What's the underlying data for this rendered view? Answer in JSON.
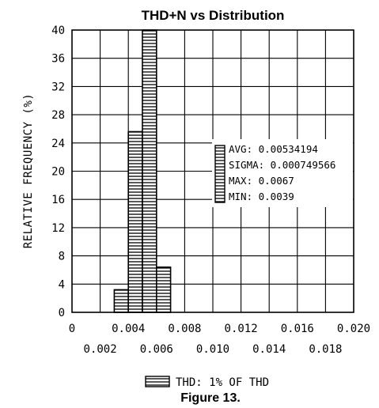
{
  "chart_data": {
    "type": "bar",
    "title": "THD+N vs Distribution",
    "ylabel": "RELATIVE FREQUENCY (%)",
    "xlabel": "",
    "xlim": [
      0,
      0.02
    ],
    "ylim": [
      0,
      40
    ],
    "x_ticks_upper": [
      "0",
      "0.004",
      "0.008",
      "0.012",
      "0.016",
      "0.020"
    ],
    "x_ticks_lower": [
      "0.002",
      "0.006",
      "0.010",
      "0.014",
      "0.018"
    ],
    "y_ticks": [
      "0",
      "4",
      "8",
      "12",
      "16",
      "20",
      "24",
      "28",
      "32",
      "36",
      "40"
    ],
    "bin_width": 0.001,
    "bins": [
      {
        "x": 0.0035,
        "value": 3.2
      },
      {
        "x": 0.0045,
        "value": 25.6
      },
      {
        "x": 0.0055,
        "value": 40
      },
      {
        "x": 0.0065,
        "value": 6.4
      }
    ],
    "grid": true,
    "stats": [
      "AVG: 0.00534194",
      "SIGMA: 0.000749566",
      "MAX: 0.0067",
      "MIN: 0.0039"
    ],
    "legend": "THD: 1% OF THD",
    "caption": "Figure 13."
  }
}
